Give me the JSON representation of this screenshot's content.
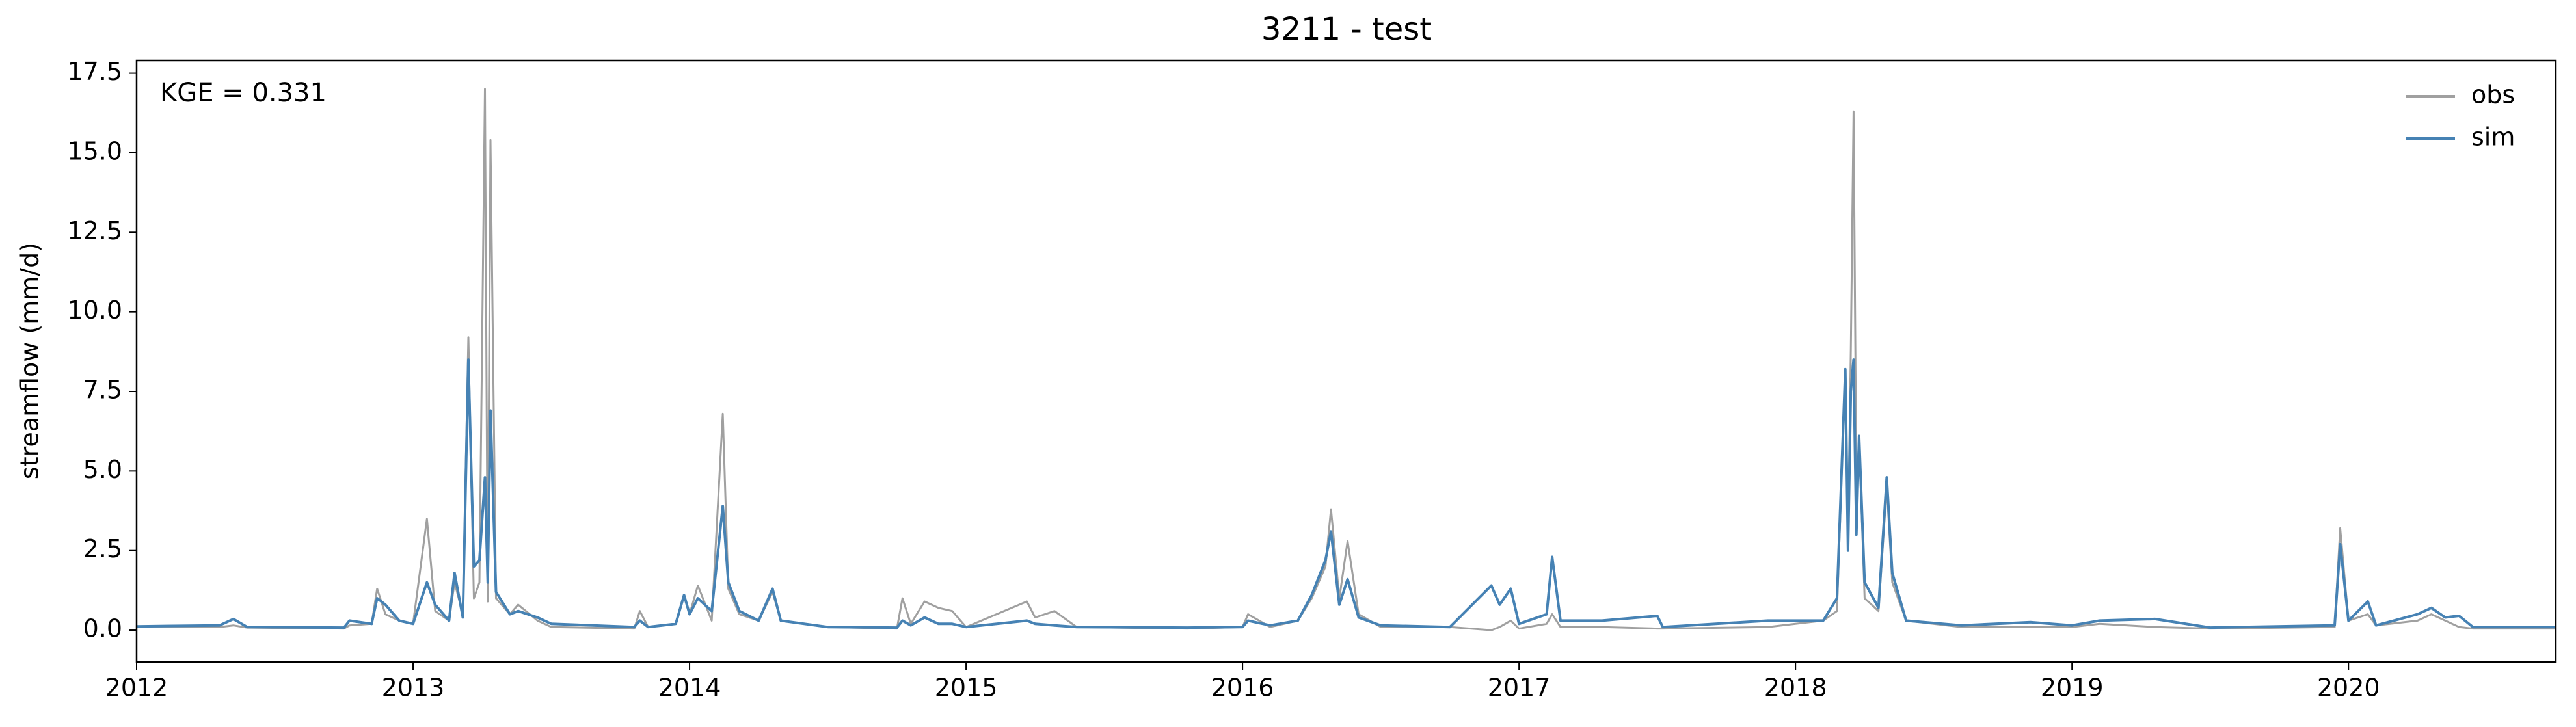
{
  "chart_data": {
    "type": "line",
    "title": "3211 - test",
    "ylabel": "streamflow (mm/d)",
    "annotation": "KGE = 0.331",
    "legend": "upper right",
    "grid": false,
    "xlim": [
      2012,
      2020.75
    ],
    "ylim": [
      -1.0,
      17.9
    ],
    "xticks": [
      2012,
      2013,
      2014,
      2015,
      2016,
      2017,
      2018,
      2019,
      2020
    ],
    "yticks": [
      {
        "value": 0,
        "label": "0.0"
      },
      2.5,
      {
        "value": 5,
        "label": "5.0"
      },
      7.5,
      {
        "value": 10,
        "label": "10.0"
      },
      12.5,
      {
        "value": 15,
        "label": "15.0"
      },
      17.5
    ],
    "x": [
      2012.0,
      2012.3,
      2012.35,
      2012.4,
      2012.75,
      2012.77,
      2012.85,
      2012.87,
      2012.9,
      2012.95,
      2013.0,
      2013.05,
      2013.08,
      2013.13,
      2013.15,
      2013.18,
      2013.2,
      2013.22,
      2013.24,
      2013.26,
      2013.27,
      2013.28,
      2013.3,
      2013.35,
      2013.38,
      2013.45,
      2013.5,
      2013.8,
      2013.82,
      2013.85,
      2013.95,
      2013.98,
      2014.0,
      2014.03,
      2014.08,
      2014.12,
      2014.14,
      2014.18,
      2014.25,
      2014.3,
      2014.33,
      2014.5,
      2014.75,
      2014.77,
      2014.8,
      2014.85,
      2014.9,
      2014.95,
      2015.0,
      2015.22,
      2015.25,
      2015.32,
      2015.4,
      2015.8,
      2016.0,
      2016.02,
      2016.1,
      2016.2,
      2016.25,
      2016.3,
      2016.32,
      2016.35,
      2016.38,
      2016.42,
      2016.5,
      2016.75,
      2016.9,
      2016.93,
      2016.97,
      2017.0,
      2017.1,
      2017.12,
      2017.15,
      2017.3,
      2017.5,
      2017.52,
      2017.9,
      2018.0,
      2018.1,
      2018.15,
      2018.18,
      2018.19,
      2018.2,
      2018.21,
      2018.22,
      2018.23,
      2018.25,
      2018.3,
      2018.33,
      2018.35,
      2018.4,
      2018.6,
      2018.85,
      2019.0,
      2019.1,
      2019.3,
      2019.5,
      2019.95,
      2019.97,
      2020.0,
      2020.07,
      2020.1,
      2020.25,
      2020.3,
      2020.35,
      2020.4,
      2020.45,
      2020.75
    ],
    "series": [
      {
        "name": "obs",
        "color": "#a0a0a0",
        "values": [
          0.1,
          0.1,
          0.15,
          0.08,
          0.05,
          0.15,
          0.2,
          1.3,
          0.5,
          0.3,
          0.2,
          3.5,
          0.6,
          0.3,
          1.5,
          0.5,
          9.2,
          1.0,
          1.5,
          17.0,
          0.9,
          15.4,
          1.0,
          0.5,
          0.8,
          0.3,
          0.1,
          0.05,
          0.6,
          0.1,
          0.2,
          1.1,
          0.5,
          1.4,
          0.3,
          6.8,
          1.3,
          0.5,
          0.3,
          1.2,
          0.3,
          0.1,
          0.05,
          1.0,
          0.2,
          0.9,
          0.7,
          0.6,
          0.1,
          0.9,
          0.4,
          0.6,
          0.1,
          0.05,
          0.1,
          0.5,
          0.1,
          0.3,
          1.0,
          2.0,
          3.8,
          1.0,
          2.8,
          0.5,
          0.1,
          0.1,
          0.0,
          0.1,
          0.3,
          0.05,
          0.2,
          0.5,
          0.1,
          0.1,
          0.05,
          0.05,
          0.1,
          0.2,
          0.3,
          0.6,
          8.2,
          3.0,
          8.8,
          16.3,
          4.5,
          6.0,
          1.0,
          0.6,
          4.5,
          1.5,
          0.3,
          0.1,
          0.1,
          0.1,
          0.2,
          0.1,
          0.05,
          0.1,
          3.2,
          0.3,
          0.5,
          0.15,
          0.3,
          0.5,
          0.3,
          0.1,
          0.05,
          0.05
        ]
      },
      {
        "name": "sim",
        "color": "#4682b4",
        "values": [
          0.12,
          0.15,
          0.35,
          0.1,
          0.08,
          0.3,
          0.2,
          1.0,
          0.8,
          0.3,
          0.2,
          1.5,
          0.8,
          0.3,
          1.8,
          0.4,
          8.5,
          2.0,
          2.2,
          4.8,
          1.5,
          6.9,
          1.2,
          0.5,
          0.6,
          0.4,
          0.2,
          0.1,
          0.3,
          0.1,
          0.2,
          1.1,
          0.5,
          1.0,
          0.6,
          3.9,
          1.5,
          0.6,
          0.3,
          1.3,
          0.3,
          0.1,
          0.08,
          0.3,
          0.15,
          0.4,
          0.2,
          0.2,
          0.1,
          0.3,
          0.2,
          0.15,
          0.1,
          0.08,
          0.1,
          0.3,
          0.15,
          0.3,
          1.1,
          2.2,
          3.1,
          0.8,
          1.6,
          0.4,
          0.15,
          0.1,
          1.4,
          0.8,
          1.3,
          0.2,
          0.5,
          2.3,
          0.3,
          0.3,
          0.45,
          0.1,
          0.3,
          0.3,
          0.3,
          1.0,
          8.2,
          2.5,
          7.5,
          8.5,
          3.0,
          6.1,
          1.5,
          0.7,
          4.8,
          1.8,
          0.3,
          0.15,
          0.25,
          0.15,
          0.3,
          0.35,
          0.08,
          0.15,
          2.7,
          0.3,
          0.9,
          0.15,
          0.5,
          0.7,
          0.4,
          0.45,
          0.1,
          0.1
        ]
      }
    ]
  }
}
